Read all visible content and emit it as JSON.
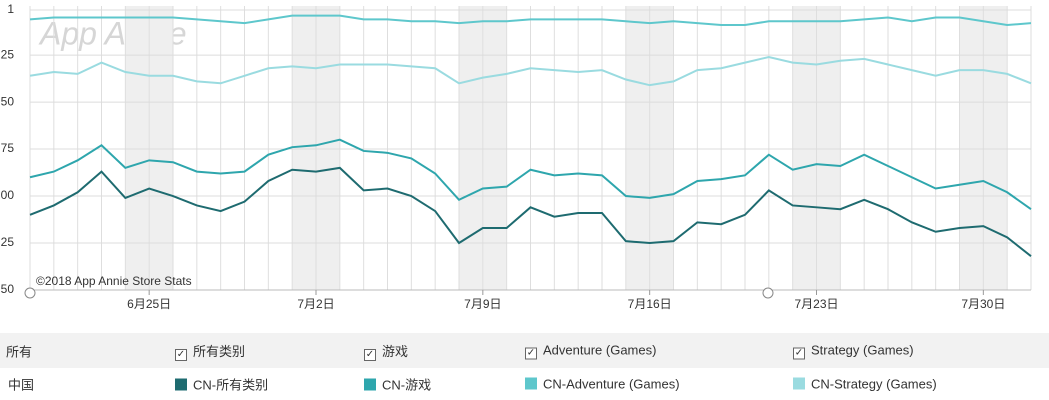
{
  "chart_data": {
    "type": "line",
    "watermark": "App Annie",
    "credit": "©2018 App Annie Store Stats",
    "categories": [
      null,
      null,
      null,
      null,
      null,
      "6月25日",
      null,
      null,
      null,
      null,
      null,
      null,
      "7月2日",
      null,
      null,
      null,
      null,
      null,
      null,
      "7月9日",
      null,
      null,
      null,
      null,
      null,
      null,
      "7月16日",
      null,
      null,
      null,
      null,
      null,
      null,
      "7月23日",
      null,
      null,
      null,
      null,
      null,
      null,
      "7月30日",
      null,
      null
    ],
    "ylim": [
      150,
      1
    ],
    "yticks": [
      1,
      25,
      50,
      75,
      {
        "value": 100,
        "label": "00"
      },
      {
        "value": 125,
        "label": "25"
      },
      {
        "value": 150,
        "label": "50"
      }
    ],
    "grid": true,
    "series": [
      {
        "name": "CN-所有类别",
        "color": "#1e6b70",
        "values": [
          110,
          105,
          98,
          87,
          101,
          96,
          100,
          105,
          108,
          103,
          92,
          86,
          87,
          85,
          97,
          96,
          100,
          108,
          125,
          117,
          117,
          106,
          111,
          109,
          109,
          124,
          125,
          124,
          114,
          115,
          110,
          97,
          105,
          106,
          107,
          102,
          107,
          114,
          119,
          117,
          116,
          122,
          132
        ]
      },
      {
        "name": "CN-游戏",
        "color": "#2ea6ad",
        "values": [
          90,
          87,
          81,
          73,
          85,
          81,
          82,
          87,
          88,
          87,
          78,
          74,
          73,
          70,
          76,
          77,
          80,
          88,
          102,
          96,
          95,
          86,
          89,
          88,
          89,
          100,
          101,
          99,
          92,
          91,
          89,
          78,
          86,
          83,
          84,
          78,
          84,
          90,
          96,
          94,
          92,
          98,
          107
        ]
      },
      {
        "name": "CN-Adventure (Games)",
        "color": "#5ec7cc",
        "values": [
          6,
          5,
          5,
          5,
          5,
          5,
          5,
          6,
          7,
          8,
          6,
          4,
          4,
          4,
          6,
          6,
          7,
          7,
          8,
          7,
          7,
          6,
          6,
          6,
          6,
          7,
          8,
          7,
          8,
          9,
          9,
          7,
          7,
          7,
          7,
          6,
          5,
          7,
          5,
          5,
          7,
          9,
          8
        ]
      },
      {
        "name": "CN-Strategy (Games)",
        "color": "#9adbe0",
        "values": [
          36,
          34,
          35,
          29,
          34,
          36,
          36,
          39,
          40,
          36,
          32,
          31,
          32,
          30,
          30,
          30,
          31,
          32,
          40,
          37,
          35,
          32,
          33,
          34,
          33,
          38,
          41,
          39,
          33,
          32,
          29,
          26,
          29,
          30,
          28,
          27,
          30,
          33,
          36,
          33,
          33,
          35,
          40
        ]
      }
    ]
  },
  "filters": {
    "row_label": "所有",
    "options": [
      "所有类别",
      "游戏",
      "Adventure (Games)",
      "Strategy (Games)"
    ],
    "legend_row_label": "中国"
  }
}
